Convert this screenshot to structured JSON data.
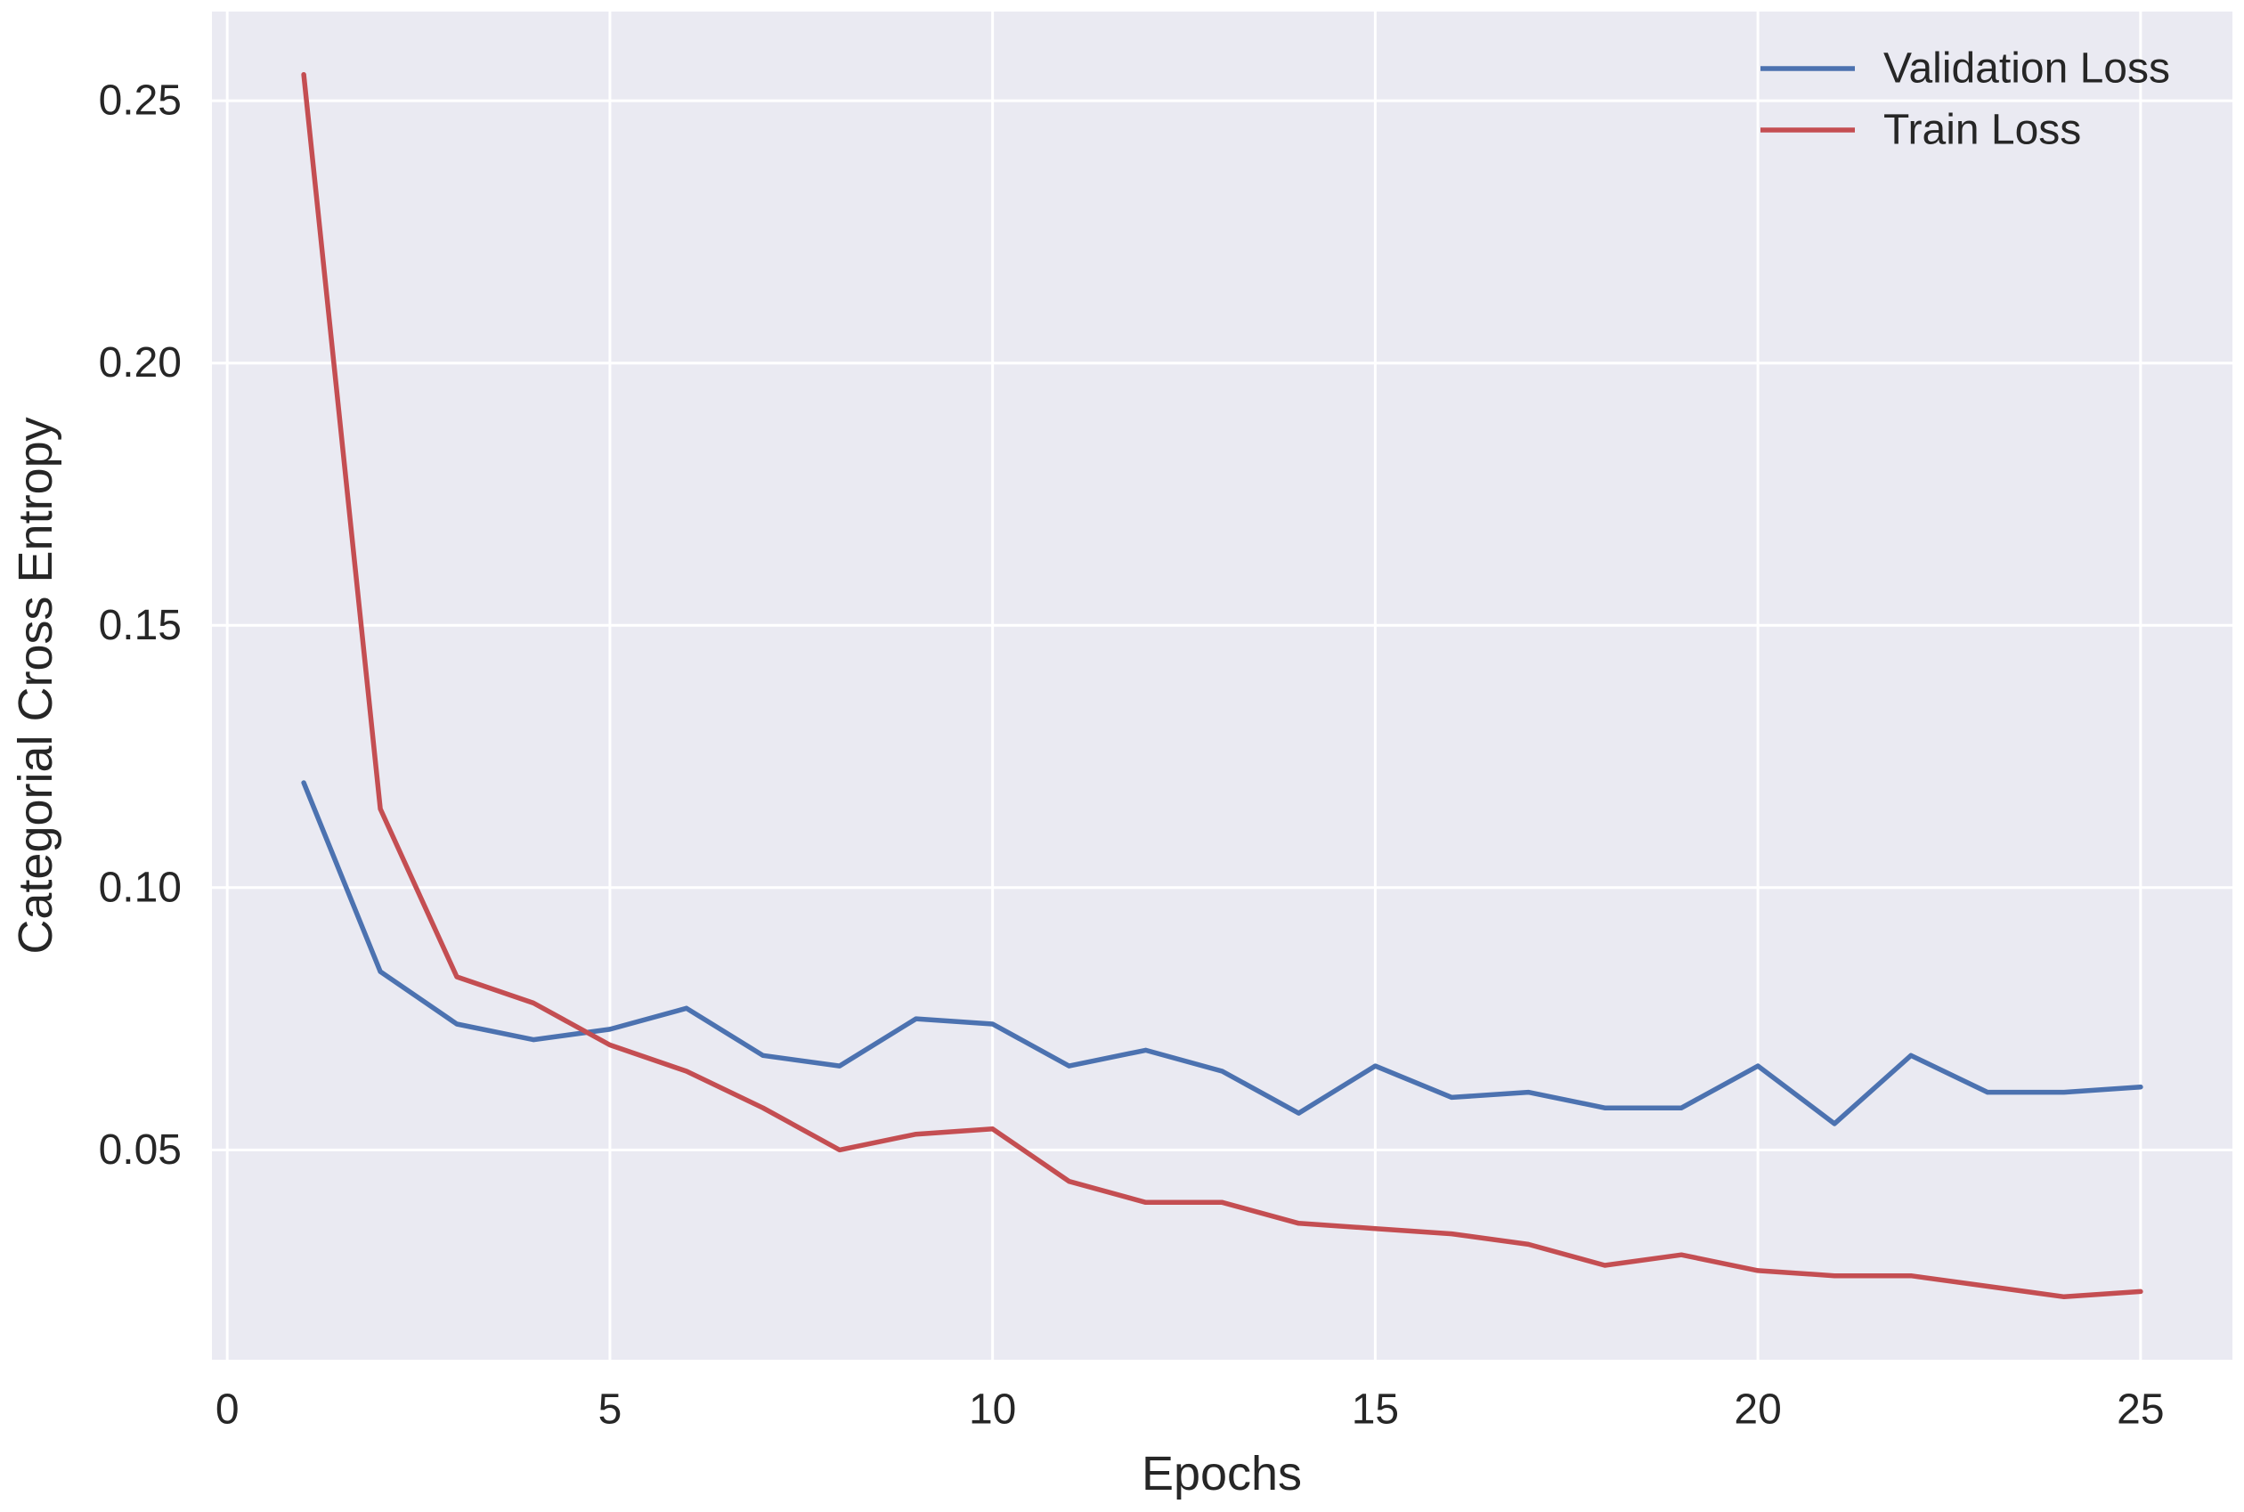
{
  "chart_data": {
    "type": "line",
    "x": [
      1,
      2,
      3,
      4,
      5,
      6,
      7,
      8,
      9,
      10,
      11,
      12,
      13,
      14,
      15,
      16,
      17,
      18,
      19,
      20,
      21,
      22,
      23,
      24,
      25
    ],
    "series": [
      {
        "name": "Validation Loss",
        "color": "#4C72B0",
        "values": [
          0.12,
          0.084,
          0.074,
          0.071,
          0.073,
          0.077,
          0.068,
          0.066,
          0.075,
          0.074,
          0.066,
          0.069,
          0.065,
          0.057,
          0.066,
          0.06,
          0.061,
          0.058,
          0.058,
          0.066,
          0.055,
          0.068,
          0.061,
          0.061,
          0.062
        ]
      },
      {
        "name": "Train Loss",
        "color": "#C44E52",
        "values": [
          0.255,
          0.115,
          0.083,
          0.078,
          0.07,
          0.065,
          0.058,
          0.05,
          0.053,
          0.054,
          0.044,
          0.04,
          0.04,
          0.036,
          0.035,
          0.034,
          0.032,
          0.028,
          0.03,
          0.027,
          0.026,
          0.026,
          0.024,
          0.022,
          0.023
        ]
      }
    ],
    "xlabel": "Epochs",
    "ylabel": "Categorial Cross Entropy",
    "xticks": [
      "0",
      "5",
      "10",
      "15",
      "20",
      "25"
    ],
    "yticks": [
      "0.05",
      "0.10",
      "0.15",
      "0.20",
      "0.25"
    ],
    "xlim": [
      -0.2,
      26.2
    ],
    "ylim": [
      0.01,
      0.267
    ],
    "grid": true,
    "legend": "top-right",
    "plot_background": "#EAEAF2",
    "grid_color": "#FFFFFF"
  }
}
